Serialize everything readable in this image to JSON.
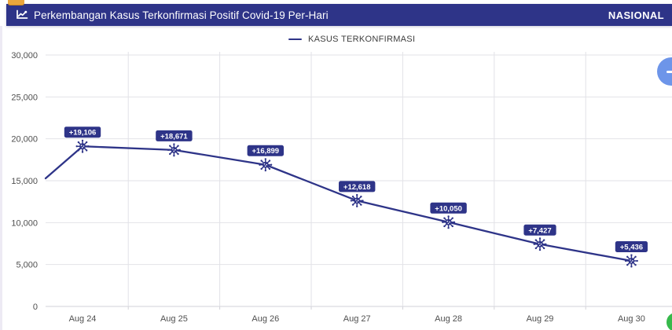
{
  "header": {
    "title": "Perkembangan Kasus Terkonfirmasi Positif Covid-19 Per-Hari",
    "region_label": "NASIONAL",
    "icon": "line-chart-icon"
  },
  "legend": {
    "label": "KASUS TERKONFIRMASI"
  },
  "chart_data": {
    "type": "line",
    "title": "Perkembangan Kasus Terkonfirmasi Positif Covid-19 Per-Hari",
    "categories": [
      "Aug 24",
      "Aug 25",
      "Aug 26",
      "Aug 27",
      "Aug 28",
      "Aug 29",
      "Aug 30"
    ],
    "series": [
      {
        "name": "KASUS TERKONFIRMASI",
        "values": [
          19106,
          18671,
          16899,
          12618,
          10050,
          7427,
          5436
        ],
        "point_labels": [
          "+19,106",
          "+18,671",
          "+16,899",
          "+12,618",
          "+10,050",
          "+7,427",
          "+5,436"
        ]
      }
    ],
    "edge_entry_value": 15280,
    "ylim": [
      0,
      30000
    ],
    "yticks": [
      0,
      5000,
      10000,
      15000,
      20000,
      25000,
      30000
    ],
    "ytick_labels": [
      "0",
      "5,000",
      "10,000",
      "15,000",
      "20,000",
      "25,000",
      "30,000"
    ],
    "grid": true,
    "legend_position": "top-center",
    "marker": "virus-icon",
    "xlabel": "",
    "ylabel": ""
  },
  "colors": {
    "navy": "#2e3488",
    "line": "#2e3488",
    "label_bg": "#2e3488",
    "label_text": "#ffffff",
    "grid": "#e2e2e7",
    "axis": "#d2d2d8",
    "tick_text": "#4f4f4f",
    "fab_blue": "#6d95e9",
    "fab_green": "#36b94b",
    "amber": "#eaa63c"
  },
  "floating_buttons": {
    "blue_minimize": {
      "icon": "minus-icon"
    },
    "green_partial": {
      "icon": "green-circle"
    }
  }
}
